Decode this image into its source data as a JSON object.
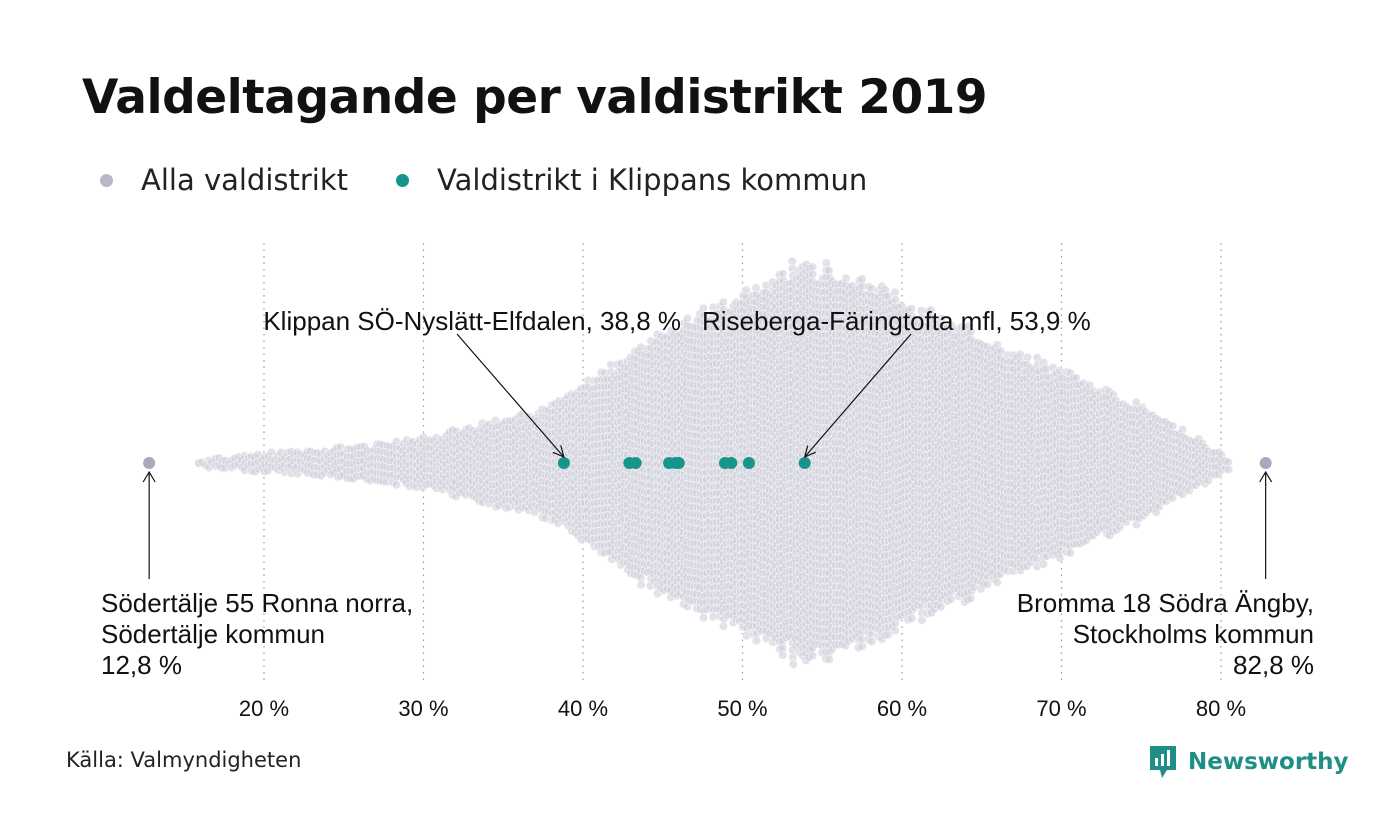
{
  "title": "Valdeltagande per valdistrikt 2019",
  "legend": [
    {
      "label": "Alla valdistrikt",
      "color": "#b9b8c9"
    },
    {
      "label": "Valdistrikt i Klippans kommun",
      "color": "#16968a"
    }
  ],
  "source": "Källa: Valmyndigheten",
  "brand": "Newsworthy",
  "colors": {
    "all": "#cfcfdb",
    "highlight": "#16968a",
    "extreme": "#a9a8bd",
    "grid": "#9a9a9a",
    "text": "#111111"
  },
  "chart_data": {
    "type": "scatter",
    "subtype": "beeswarm",
    "x_label": "",
    "y_label": "",
    "xlim": [
      12.8,
      82.8
    ],
    "x_ticks": [
      20,
      30,
      40,
      50,
      60,
      70,
      80
    ],
    "x_tick_labels": [
      "20 %",
      "30 %",
      "40 %",
      "50 %",
      "60 %",
      "70 %",
      "80 %"
    ],
    "grid": "vertical dotted",
    "legend_position": "top-left",
    "distribution": {
      "mode_percent": 53.8,
      "min_percent": 12.8,
      "max_percent": 82.8
    },
    "series": [
      {
        "name": "Valdistrikt i Klippans kommun",
        "values": [
          38.8,
          42.9,
          43.3,
          45.4,
          45.8,
          46.0,
          48.9,
          49.3,
          50.4,
          53.9
        ]
      }
    ],
    "extremes": [
      {
        "percent": 12.8,
        "label_lines": [
          "Södertälje 55 Ronna norra,",
          "Södertälje kommun",
          "12,8 %"
        ]
      },
      {
        "percent": 82.8,
        "label_lines": [
          "Bromma 18 Södra Ängby,",
          "Stockholms kommun",
          "82,8 %"
        ]
      }
    ],
    "annotations": [
      {
        "text": "Klippan SÖ-Nyslätt-Elfdalen, 38,8 %",
        "percent": 38.8
      },
      {
        "text": "Riseberga-Färingtofta mfl, 53,9 %",
        "percent": 53.9
      }
    ]
  }
}
